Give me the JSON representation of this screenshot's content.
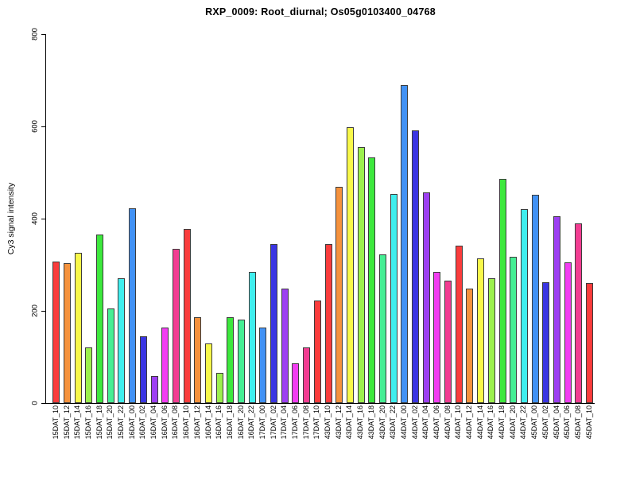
{
  "title": "RXP_0009: Root_diurnal; Os05g0103400_04768",
  "chart_data": {
    "type": "bar",
    "title": "RXP_0009: Root_diurnal; Os05g0103400_04768",
    "xlabel": "",
    "ylabel": "Cy3 signal intensity",
    "ylim": [
      0,
      800
    ],
    "yticks": [
      0,
      200,
      400,
      600,
      800
    ],
    "grid": false,
    "legend_position": "none",
    "background": "#ffffff",
    "bar_border_color": "#3c3c3c",
    "categories": [
      "15DAT_10",
      "15DAT_12",
      "15DAT_14",
      "15DAT_16",
      "15DAT_18",
      "15DAT_20",
      "15DAT_22",
      "16DAT_00",
      "16DAT_02",
      "16DAT_04",
      "16DAT_06",
      "16DAT_08",
      "16DAT_10",
      "16DAT_12",
      "16DAT_14",
      "16DAT_16",
      "16DAT_18",
      "16DAT_20",
      "16DAT_22",
      "17DAT_00",
      "17DAT_02",
      "17DAT_04",
      "17DAT_06",
      "17DAT_08",
      "17DAT_10",
      "43DAT_10",
      "43DAT_12",
      "43DAT_14",
      "43DAT_16",
      "43DAT_18",
      "43DAT_20",
      "43DAT_22",
      "44DAT_00",
      "44DAT_02",
      "44DAT_04",
      "44DAT_06",
      "44DAT_08",
      "44DAT_10",
      "44DAT_12",
      "44DAT_14",
      "44DAT_16",
      "44DAT_18",
      "44DAT_20",
      "44DAT_22",
      "45DAT_00",
      "45DAT_02",
      "45DAT_04",
      "45DAT_06",
      "45DAT_08",
      "45DAT_10"
    ],
    "values": [
      307,
      303,
      326,
      121,
      365,
      206,
      270,
      422,
      144,
      58,
      163,
      334,
      377,
      186,
      130,
      66,
      187,
      181,
      285,
      163,
      344,
      248,
      87,
      121,
      222,
      345,
      469,
      599,
      555,
      532,
      322,
      453,
      690,
      591,
      457,
      284,
      265,
      342,
      249,
      314,
      271,
      486,
      318,
      421,
      451,
      262,
      405,
      306,
      389,
      260
    ],
    "colors_by_time_suffix": {
      "10": "#fa3c3c",
      "12": "#f5923d",
      "14": "#f8f84a",
      "16": "#9cf04e",
      "18": "#3de83d",
      "20": "#46ee94",
      "22": "#40eeee",
      "00": "#4292f5",
      "02": "#3a35e3",
      "04": "#9d40f2",
      "06": "#f23df2",
      "08": "#f23d92"
    }
  }
}
